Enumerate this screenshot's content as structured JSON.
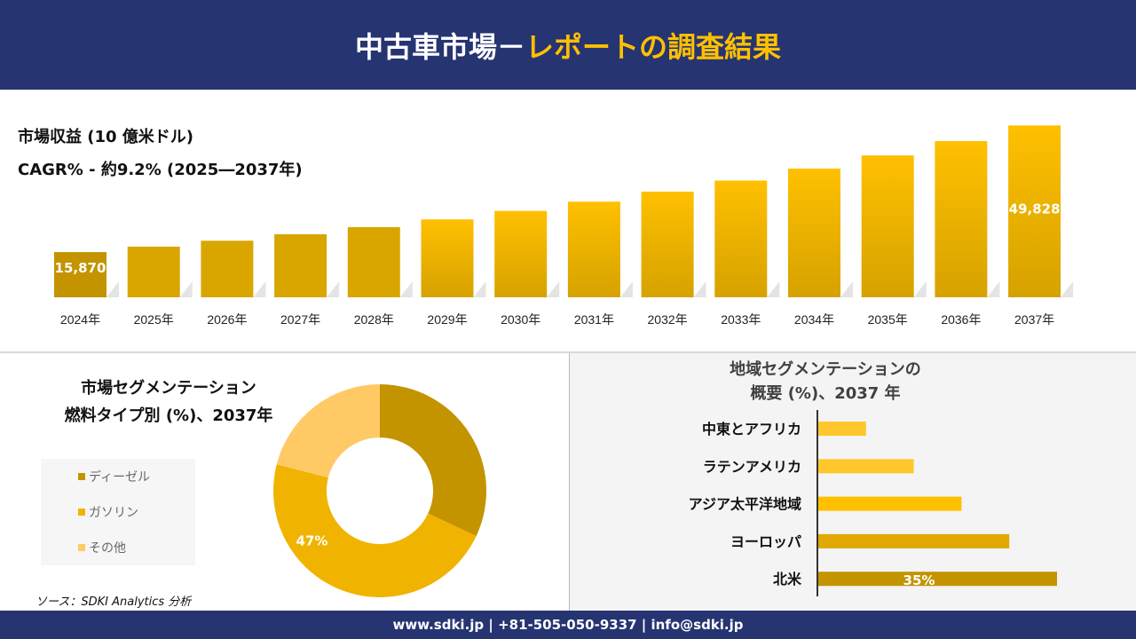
{
  "header": {
    "title_main": "中古車市場－",
    "title_accent": "レポートの調査結果"
  },
  "colors": {
    "header_bg": "#263472",
    "accent": "#FFC000",
    "diesel": "#C39400",
    "gasoline": "#F0B400",
    "others": "#FFC966"
  },
  "footer": {
    "contact": "www.sdki.jp | +81-505-050-9337 | info@sdki.jp"
  },
  "source": "ソース：SDKI Analytics 分析",
  "chart_data": [
    {
      "type": "bar",
      "title": "市場収益 (10 億米ドル)",
      "subtitle": "CAGR% - 約9.2% (2025―2037年)",
      "categories": [
        "2024年",
        "2025年",
        "2026年",
        "2027年",
        "2028年",
        "2029年",
        "2030年",
        "2031年",
        "2032年",
        "2033年",
        "2034年",
        "2035年",
        "2036年",
        "2037年"
      ],
      "values": [
        15870,
        17330,
        18924,
        20665,
        22567,
        24643,
        26910,
        29386,
        32089,
        35041,
        38265,
        41786,
        45630,
        49828
      ],
      "data_labels": {
        "0": "15,870",
        "13": "49,828"
      },
      "ylim": [
        3750,
        53000
      ],
      "grid": false
    },
    {
      "type": "pie",
      "title_line1": "市場セグメンテーション",
      "title_line2": "燃料タイプ別 (%)、2037年",
      "donut": true,
      "slices": [
        {
          "name": "ディーゼル",
          "value": 32
        },
        {
          "name": "ガソリン",
          "value": 47,
          "label": "47%"
        },
        {
          "name": "その他",
          "value": 21
        }
      ],
      "legend": "left"
    },
    {
      "type": "bar",
      "orientation": "horizontal",
      "title_line1": "地域セグメンテーションの",
      "title_line2": "概要 (%)、2037 年",
      "categories": [
        "中東とアフリカ",
        "ラテンアメリカ",
        "アジア太平洋地域",
        "ヨーロッパ",
        "北米"
      ],
      "values": [
        7,
        14,
        21,
        28,
        35
      ],
      "data_labels": {
        "4": "35%"
      },
      "xlim": [
        0,
        35
      ]
    }
  ]
}
